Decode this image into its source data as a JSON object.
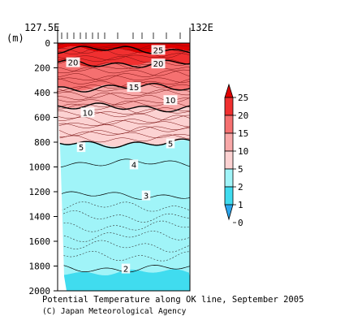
{
  "chart_data": {
    "type": "heatmap",
    "title": "Potential Temperature along OK line, September 2005",
    "credit": "(C) Japan Meteorological Agency",
    "xlabel_left": "127.5E",
    "xlabel_right": "132E",
    "ylabel": "(m)",
    "y_ticks": [
      "0",
      "200",
      "400",
      "600",
      "800",
      "1000",
      "1200",
      "1400",
      "1600",
      "1800",
      "2000"
    ],
    "ylim": [
      0,
      2000
    ],
    "colorbar_levels": [
      "25",
      "20",
      "15",
      "10",
      "5",
      "2",
      "1",
      "0"
    ],
    "colorbar_colors": [
      "#e00000",
      "#f03030",
      "#f57070",
      "#f8a8a8",
      "#fcd2d2",
      "#a0f4f8",
      "#40dcef",
      "#2aa6ee"
    ],
    "isotherms": [
      {
        "label": "25",
        "depth": 55
      },
      {
        "label": "20",
        "depth": 165
      },
      {
        "label": "15",
        "depth": 360
      },
      {
        "label": "10",
        "depth": 520
      },
      {
        "label": "5",
        "depth": 810
      },
      {
        "label": "4",
        "depth": 970
      },
      {
        "label": "3",
        "depth": 1230
      },
      {
        "label": "2",
        "depth": 1820
      }
    ],
    "contour_labels": [
      {
        "text": "25",
        "depth": 55
      },
      {
        "text": "20",
        "depth": 155
      },
      {
        "text": "20",
        "depth": 165
      },
      {
        "text": "15",
        "depth": 355
      },
      {
        "text": "10",
        "depth": 460
      },
      {
        "text": "10",
        "depth": 560
      },
      {
        "text": "5",
        "depth": 840
      },
      {
        "text": "5",
        "depth": 810
      },
      {
        "text": "4",
        "depth": 980
      },
      {
        "text": "3",
        "depth": 1230
      },
      {
        "text": "2",
        "depth": 1820
      }
    ]
  }
}
